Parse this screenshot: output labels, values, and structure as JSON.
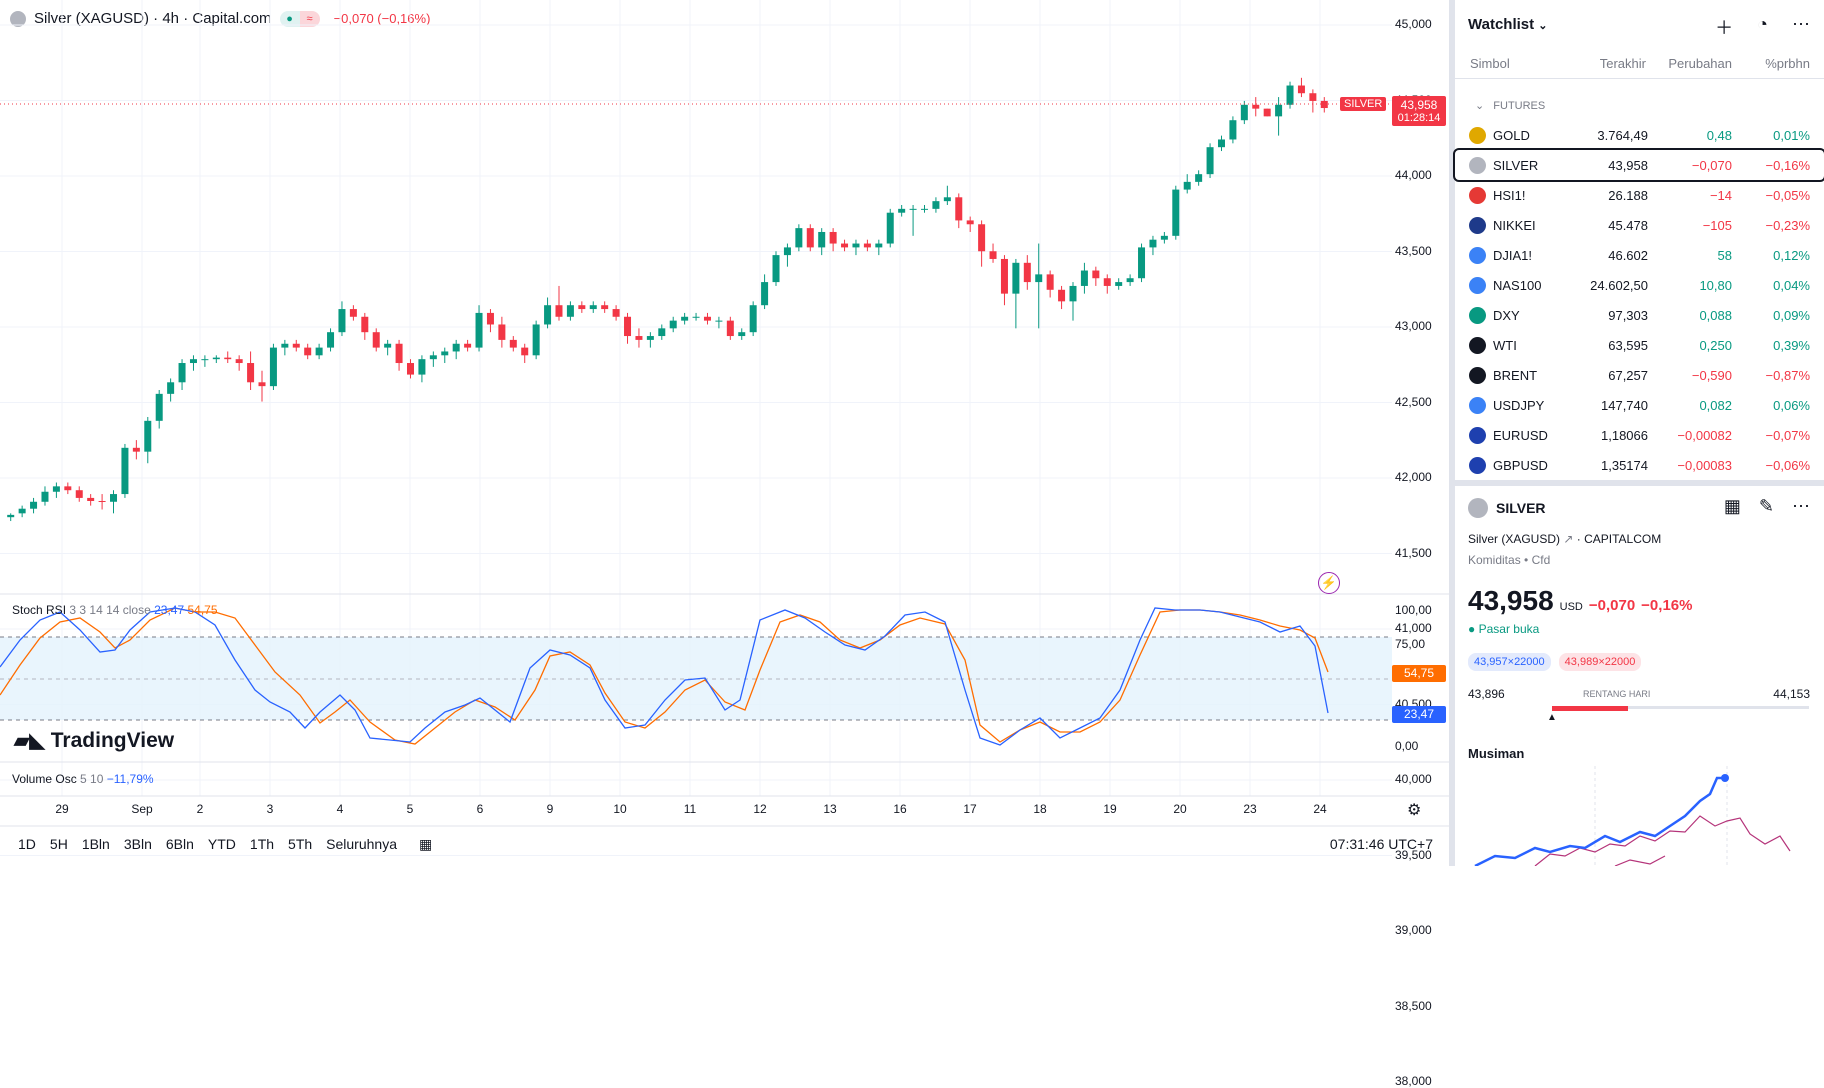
{
  "chart_header": {
    "title": "Silver (XAGUSD) · 4h · Capital.com",
    "change": "−0,070 (−0,16%)"
  },
  "colors": {
    "up": "#089981",
    "down": "#f23645",
    "stoch_k": "#2962ff",
    "stoch_d": "#ff6d00",
    "accent": "#2962ff"
  },
  "price_axis": [
    "45,000",
    "44,500",
    "44,000",
    "43,500",
    "43,000",
    "42,500",
    "42,000",
    "41,500",
    "41,000",
    "40,500",
    "40,000",
    "39,500",
    "39,000",
    "38,500",
    "38,000"
  ],
  "price_tag": {
    "symbol": "SILVER",
    "price": "43,958",
    "countdown": "01:28:14"
  },
  "stoch": {
    "label": "Stoch RSI",
    "params": "3 3 14 14 close",
    "k": "23,47",
    "d": "54,75",
    "axis": [
      "100,00",
      "75,00",
      "0,00"
    ]
  },
  "volume_osc": {
    "label": "Volume Osc",
    "params": "5 10",
    "value": "−11,79%"
  },
  "x_axis": [
    "29",
    "Sep",
    "2",
    "3",
    "4",
    "5",
    "6",
    "9",
    "10",
    "11",
    "12",
    "13",
    "16",
    "17",
    "18",
    "19",
    "20",
    "23",
    "24"
  ],
  "brand": "TradingView",
  "timeframes": [
    "1D",
    "5H",
    "1Bln",
    "3Bln",
    "6Bln",
    "YTD",
    "1Th",
    "5Th",
    "Seluruhnya"
  ],
  "clock": "07:31:46 UTC+7",
  "watchlist": {
    "title": "Watchlist",
    "columns": [
      "Simbol",
      "Terakhir",
      "Perubahan",
      "%prbhn"
    ],
    "section": "FUTURES",
    "rows": [
      {
        "sym": "GOLD",
        "last": "3.764,49",
        "chg": "0,48",
        "pct": "0,01%",
        "dir": "up",
        "icon_color": "#e0a800"
      },
      {
        "sym": "SILVER",
        "last": "43,958",
        "chg": "−0,070",
        "pct": "−0,16%",
        "dir": "down",
        "icon_color": "#b2b5be"
      },
      {
        "sym": "HSI1!",
        "last": "26.188",
        "chg": "−14",
        "pct": "−0,05%",
        "dir": "down",
        "icon_color": "#e53935"
      },
      {
        "sym": "NIKKEI",
        "last": "45.478",
        "chg": "−105",
        "pct": "−0,23%",
        "dir": "down",
        "icon_color": "#1e3a8a"
      },
      {
        "sym": "DJIA1!",
        "last": "46.602",
        "chg": "58",
        "pct": "0,12%",
        "dir": "up",
        "icon_color": "#3b82f6"
      },
      {
        "sym": "NAS100",
        "last": "24.602,50",
        "chg": "10,80",
        "pct": "0,04%",
        "dir": "up",
        "icon_color": "#3b82f6"
      },
      {
        "sym": "DXY",
        "last": "97,303",
        "chg": "0,088",
        "pct": "0,09%",
        "dir": "up",
        "icon_color": "#089981"
      },
      {
        "sym": "WTI",
        "last": "63,595",
        "chg": "0,250",
        "pct": "0,39%",
        "dir": "up",
        "icon_color": "#131722"
      },
      {
        "sym": "BRENT",
        "last": "67,257",
        "chg": "−0,590",
        "pct": "−0,87%",
        "dir": "down",
        "icon_color": "#131722"
      },
      {
        "sym": "USDJPY",
        "last": "147,740",
        "chg": "0,082",
        "pct": "0,06%",
        "dir": "up",
        "icon_color": "#3b82f6"
      },
      {
        "sym": "EURUSD",
        "last": "1,18066",
        "chg": "−0,00082",
        "pct": "−0,07%",
        "dir": "down",
        "icon_color": "#1e40af"
      },
      {
        "sym": "GBPUSD",
        "last": "1,35174",
        "chg": "−0,00083",
        "pct": "−0,06%",
        "dir": "down",
        "icon_color": "#1e40af"
      }
    ]
  },
  "details": {
    "symbol": "SILVER",
    "name": "Silver (XAGUSD)",
    "exchange": "CAPITALCOM",
    "category": "Komiditas",
    "type": "Cfd",
    "price": "43,958",
    "currency": "USD",
    "change": "−0,070",
    "change_pct": "−0,16%",
    "market_status": "Pasar buka",
    "bid": "43,957×22000",
    "ask": "43,989×22000",
    "range_low": "43,896",
    "range_label": "RENTANG HARI",
    "range_high": "44,153",
    "seasonal_title": "Musiman"
  },
  "chart_data": {
    "type": "candlestick",
    "y_range": [
      37900,
      45100
    ],
    "candles": [
      [
        38650,
        38700,
        38600,
        38680
      ],
      [
        38700,
        38800,
        38650,
        38760
      ],
      [
        38760,
        38900,
        38700,
        38850
      ],
      [
        38850,
        39050,
        38800,
        38980
      ],
      [
        38980,
        39100,
        38900,
        39050
      ],
      [
        39050,
        39100,
        38950,
        39000
      ],
      [
        39000,
        39050,
        38850,
        38900
      ],
      [
        38900,
        38950,
        38800,
        38860
      ],
      [
        38860,
        38950,
        38750,
        38850
      ],
      [
        38850,
        39000,
        38700,
        38950
      ],
      [
        38950,
        39600,
        38900,
        39550
      ],
      [
        39550,
        39650,
        39400,
        39500
      ],
      [
        39500,
        39950,
        39350,
        39900
      ],
      [
        39900,
        40300,
        39800,
        40250
      ],
      [
        40250,
        40450,
        40150,
        40400
      ],
      [
        40400,
        40700,
        40300,
        40650
      ],
      [
        40650,
        40750,
        40550,
        40700
      ],
      [
        40700,
        40750,
        40600,
        40700
      ],
      [
        40700,
        40750,
        40650,
        40720
      ],
      [
        40720,
        40800,
        40650,
        40700
      ],
      [
        40700,
        40750,
        40550,
        40650
      ],
      [
        40650,
        40800,
        40300,
        40400
      ],
      [
        40400,
        40550,
        40150,
        40350
      ],
      [
        40350,
        40900,
        40300,
        40850
      ],
      [
        40850,
        40950,
        40750,
        40900
      ],
      [
        40900,
        40950,
        40800,
        40850
      ],
      [
        40850,
        40900,
        40700,
        40750
      ],
      [
        40750,
        40900,
        40700,
        40850
      ],
      [
        40850,
        41100,
        40800,
        41050
      ],
      [
        41050,
        41450,
        41000,
        41350
      ],
      [
        41350,
        41400,
        41200,
        41250
      ],
      [
        41250,
        41300,
        40950,
        41050
      ],
      [
        41050,
        41100,
        40800,
        40850
      ],
      [
        40850,
        40950,
        40750,
        40900
      ],
      [
        40900,
        40950,
        40550,
        40650
      ],
      [
        40650,
        40700,
        40450,
        40500
      ],
      [
        40500,
        40750,
        40400,
        40700
      ],
      [
        40700,
        40800,
        40600,
        40750
      ],
      [
        40750,
        40850,
        40650,
        40800
      ],
      [
        40800,
        40950,
        40700,
        40900
      ],
      [
        40900,
        40950,
        40800,
        40850
      ],
      [
        40850,
        41400,
        40800,
        41300
      ],
      [
        41300,
        41350,
        41050,
        41150
      ],
      [
        41150,
        41250,
        40850,
        40950
      ],
      [
        40950,
        41000,
        40800,
        40850
      ],
      [
        40850,
        40900,
        40650,
        40750
      ],
      [
        40750,
        41200,
        40700,
        41150
      ],
      [
        41150,
        41500,
        41100,
        41400
      ],
      [
        41400,
        41650,
        41200,
        41250
      ],
      [
        41250,
        41450,
        41200,
        41400
      ],
      [
        41400,
        41450,
        41300,
        41350
      ],
      [
        41350,
        41450,
        41300,
        41400
      ],
      [
        41400,
        41450,
        41300,
        41350
      ],
      [
        41350,
        41400,
        41200,
        41250
      ],
      [
        41250,
        41300,
        40900,
        41000
      ],
      [
        41000,
        41100,
        40850,
        40950
      ],
      [
        40950,
        41050,
        40850,
        41000
      ],
      [
        41000,
        41150,
        40950,
        41100
      ],
      [
        41100,
        41250,
        41050,
        41200
      ],
      [
        41200,
        41300,
        41150,
        41250
      ],
      [
        41250,
        41300,
        41200,
        41250
      ],
      [
        41250,
        41300,
        41150,
        41200
      ],
      [
        41200,
        41250,
        41100,
        41200
      ],
      [
        41200,
        41250,
        40950,
        41000
      ],
      [
        41000,
        41100,
        40950,
        41050
      ],
      [
        41050,
        41450,
        41000,
        41400
      ],
      [
        41400,
        41800,
        41350,
        41700
      ],
      [
        41700,
        42100,
        41650,
        42050
      ],
      [
        42050,
        42200,
        41900,
        42150
      ],
      [
        42150,
        42450,
        42100,
        42400
      ],
      [
        42400,
        42450,
        42100,
        42150
      ],
      [
        42150,
        42400,
        42050,
        42350
      ],
      [
        42350,
        42400,
        42100,
        42200
      ],
      [
        42200,
        42250,
        42100,
        42150
      ],
      [
        42150,
        42250,
        42050,
        42200
      ],
      [
        42200,
        42250,
        42100,
        42150
      ],
      [
        42150,
        42250,
        42050,
        42200
      ],
      [
        42200,
        42650,
        42150,
        42600
      ],
      [
        42600,
        42700,
        42550,
        42650
      ],
      [
        42650,
        42700,
        42300,
        42650
      ],
      [
        42650,
        42700,
        42600,
        42650
      ],
      [
        42650,
        42800,
        42600,
        42750
      ],
      [
        42750,
        42950,
        42700,
        42800
      ],
      [
        42800,
        42850,
        42400,
        42500
      ],
      [
        42500,
        42550,
        42350,
        42450
      ],
      [
        42450,
        42500,
        41900,
        42100
      ],
      [
        42100,
        42200,
        41950,
        42000
      ],
      [
        42000,
        42050,
        41400,
        41550
      ],
      [
        41550,
        42000,
        41100,
        41950
      ],
      [
        41950,
        42050,
        41600,
        41700
      ],
      [
        41700,
        42200,
        41100,
        41800
      ],
      [
        41800,
        41850,
        41500,
        41600
      ],
      [
        41600,
        41650,
        41350,
        41450
      ],
      [
        41450,
        41700,
        41200,
        41650
      ],
      [
        41650,
        41950,
        41550,
        41850
      ],
      [
        41850,
        41900,
        41650,
        41750
      ],
      [
        41750,
        41800,
        41550,
        41650
      ],
      [
        41650,
        41750,
        41600,
        41700
      ],
      [
        41700,
        41800,
        41650,
        41750
      ],
      [
        41750,
        42200,
        41700,
        42150
      ],
      [
        42150,
        42300,
        42050,
        42250
      ],
      [
        42250,
        42350,
        42200,
        42300
      ],
      [
        42300,
        42950,
        42250,
        42900
      ],
      [
        42900,
        43100,
        42850,
        43000
      ],
      [
        43000,
        43150,
        42950,
        43100
      ],
      [
        43100,
        43500,
        43050,
        43450
      ],
      [
        43450,
        43600,
        43400,
        43550
      ],
      [
        43550,
        43850,
        43500,
        43800
      ],
      [
        43800,
        44050,
        43750,
        44000
      ],
      [
        44000,
        44100,
        43850,
        43950
      ],
      [
        43950,
        43950,
        43850,
        43850
      ],
      [
        43850,
        44100,
        43600,
        44000
      ],
      [
        44000,
        44300,
        43950,
        44250
      ],
      [
        44250,
        44350,
        44100,
        44150
      ],
      [
        44150,
        44200,
        43900,
        44050
      ],
      [
        44050,
        44100,
        43900,
        43958
      ]
    ]
  }
}
